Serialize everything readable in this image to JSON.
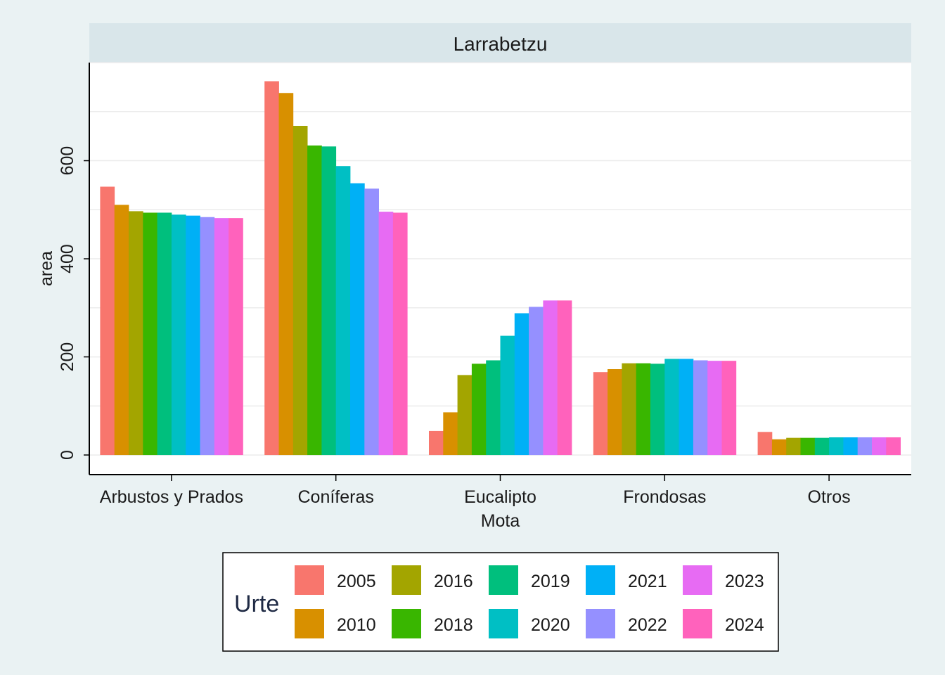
{
  "chart_data": {
    "type": "bar",
    "facet_title": "Larrabetzu",
    "xlabel": "Mota",
    "ylabel": "area",
    "ylim": [
      -40,
      800
    ],
    "yticks": [
      0,
      200,
      400,
      600
    ],
    "grid": true,
    "legend_position": "bottom",
    "legend_title": "Urte",
    "categories": [
      "Arbustos y Prados",
      "Coníferas",
      "Eucalipto",
      "Frondosas",
      "Otros"
    ],
    "series": [
      {
        "name": "2005",
        "color": "#f8766d",
        "values": [
          547,
          762,
          49,
          169,
          47
        ]
      },
      {
        "name": "2010",
        "color": "#d89000",
        "values": [
          510,
          738,
          87,
          175,
          32
        ]
      },
      {
        "name": "2016",
        "color": "#a3a500",
        "values": [
          497,
          671,
          163,
          187,
          35
        ]
      },
      {
        "name": "2018",
        "color": "#39b600",
        "values": [
          494,
          631,
          186,
          187,
          35
        ]
      },
      {
        "name": "2019",
        "color": "#00bf7d",
        "values": [
          494,
          629,
          193,
          186,
          35
        ]
      },
      {
        "name": "2020",
        "color": "#00bfc4",
        "values": [
          490,
          589,
          243,
          196,
          36
        ]
      },
      {
        "name": "2021",
        "color": "#00b0f6",
        "values": [
          488,
          554,
          289,
          196,
          36
        ]
      },
      {
        "name": "2022",
        "color": "#9590ff",
        "values": [
          485,
          543,
          302,
          193,
          36
        ]
      },
      {
        "name": "2023",
        "color": "#e76bf3",
        "values": [
          483,
          496,
          315,
          192,
          36
        ]
      },
      {
        "name": "2024",
        "color": "#ff62bc",
        "values": [
          483,
          494,
          315,
          192,
          36
        ]
      }
    ]
  }
}
